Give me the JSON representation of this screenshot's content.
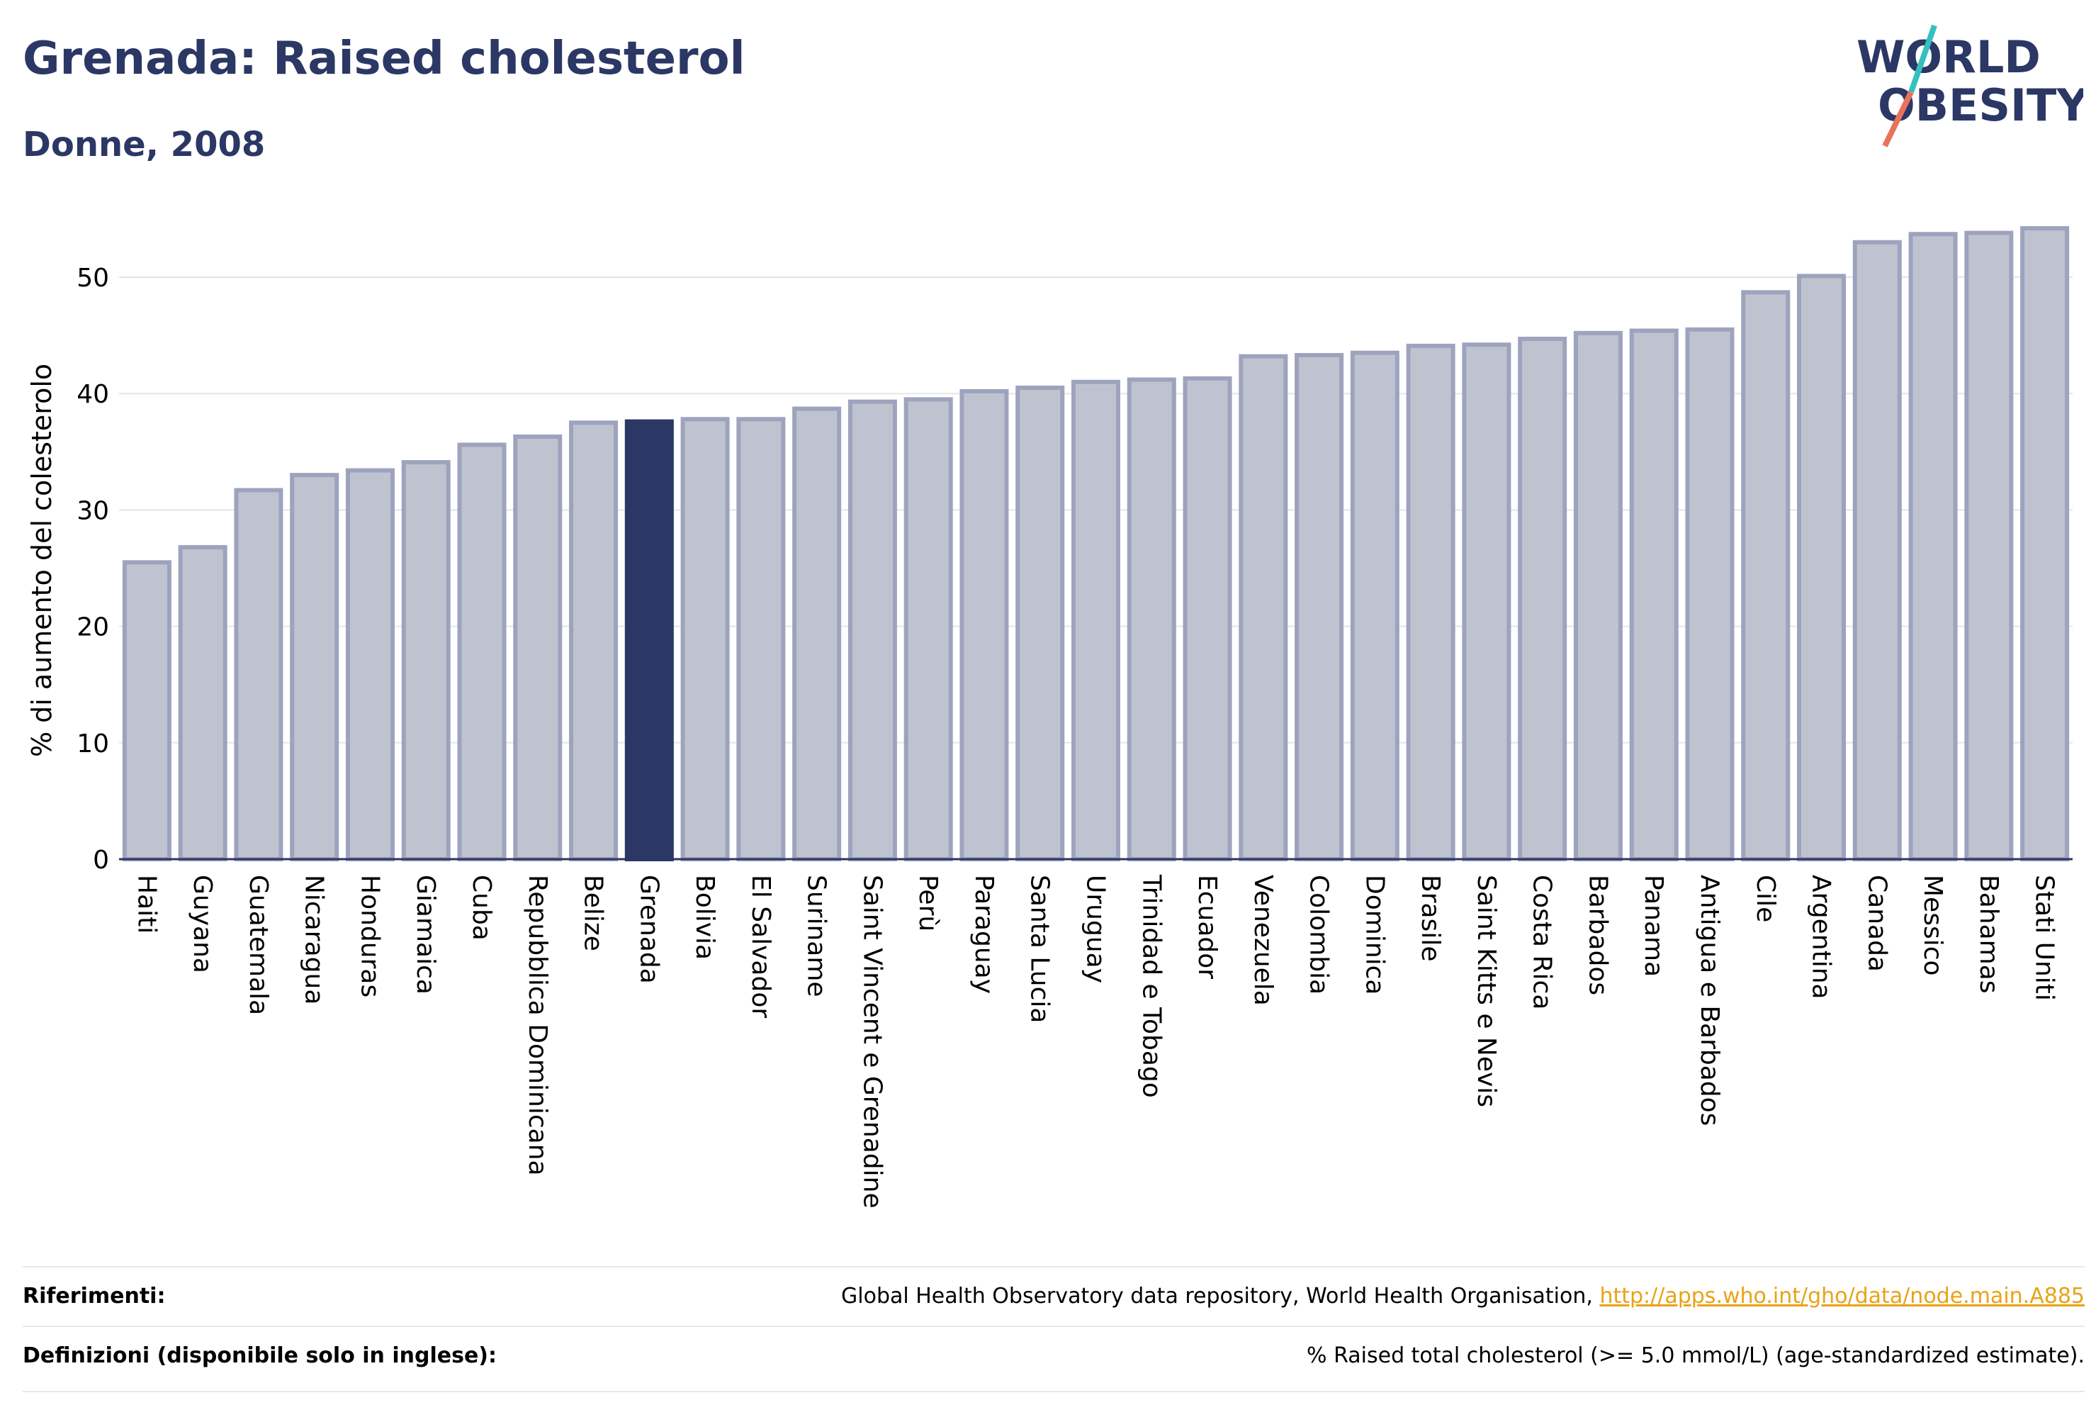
{
  "header": {
    "title": "Grenada: Raised cholesterol",
    "subtitle": "Donne, 2008"
  },
  "logo": {
    "line1": "WORLD",
    "line2": "OBESITY"
  },
  "footer": {
    "references_label": "Riferimenti:",
    "references_text": "Global Health Observatory data repository, World Health Organisation, ",
    "references_link": "http://apps.who.int/gho/data/node.main.A885",
    "definitions_label": "Definizioni (disponibile solo in inglese):",
    "definitions_text": "% Raised total cholesterol (>= 5.0 mmol/L) (age-standardized estimate)."
  },
  "colors": {
    "bar_fill": "#bfc3d0",
    "bar_stroke": "#9ea3bd",
    "highlight_fill": "#2b3764",
    "title_color": "#2b3764",
    "link_color": "#e8a317"
  },
  "chart_data": {
    "type": "bar",
    "ylabel": "% di aumento del colesterolo",
    "ylim": [
      0,
      55
    ],
    "yticks": [
      0,
      10,
      20,
      30,
      40,
      50
    ],
    "grid": true,
    "highlight": "Grenada",
    "categories": [
      "Haiti",
      "Guyana",
      "Guatemala",
      "Nicaragua",
      "Honduras",
      "Giamaica",
      "Cuba",
      "Repubblica Dominicana",
      "Belize",
      "Grenada",
      "Bolivia",
      "El Salvador",
      "Suriname",
      "Saint Vincent e Grenadine",
      "Perù",
      "Paraguay",
      "Santa Lucia",
      "Uruguay",
      "Trinidad e Tobago",
      "Ecuador",
      "Venezuela",
      "Colombia",
      "Dominica",
      "Brasile",
      "Saint Kitts e Nevis",
      "Costa Rica",
      "Barbados",
      "Panama",
      "Antigua e Barbados",
      "Cile",
      "Argentina",
      "Canada",
      "Messico",
      "Bahamas",
      "Stati Uniti"
    ],
    "values": [
      25.5,
      26.8,
      31.7,
      33.0,
      33.4,
      34.1,
      35.6,
      36.3,
      37.5,
      37.6,
      37.8,
      37.8,
      38.7,
      39.3,
      39.5,
      40.2,
      40.5,
      41.0,
      41.2,
      41.3,
      43.2,
      43.3,
      43.5,
      44.1,
      44.2,
      44.7,
      45.2,
      45.4,
      45.5,
      48.7,
      50.1,
      53.0,
      53.7,
      53.8,
      54.2
    ]
  }
}
